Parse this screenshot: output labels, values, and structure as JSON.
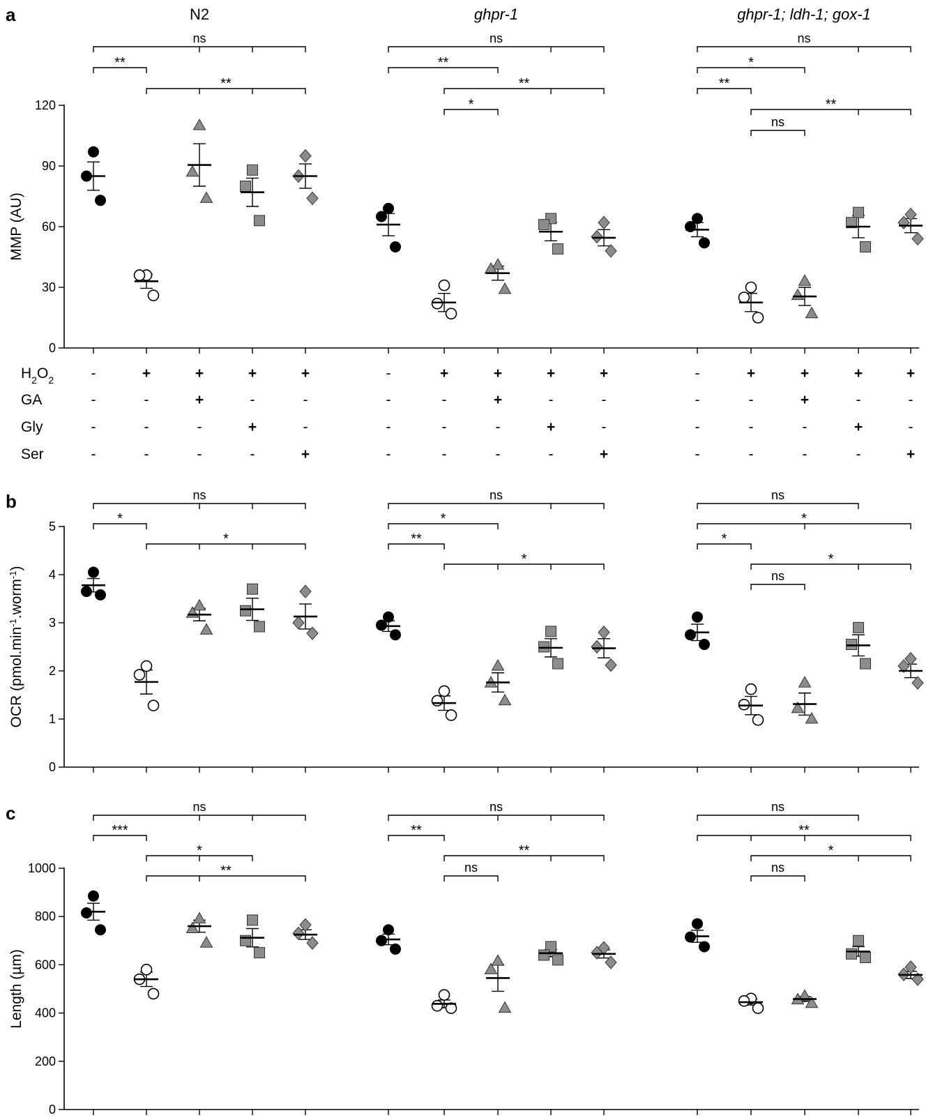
{
  "figure": {
    "group_titles": [
      {
        "text": "N2",
        "italic": false
      },
      {
        "text": "ghpr-1",
        "italic": true
      },
      {
        "text": "ghpr-1; ldh-1; gox-1",
        "italic": true
      }
    ],
    "treatment_rows": [
      {
        "label": "H2O2",
        "values": [
          "-",
          "+",
          "+",
          "+",
          "+"
        ]
      },
      {
        "label": "GA",
        "values": [
          "-",
          "-",
          "+",
          "-",
          "-"
        ]
      },
      {
        "label": "Gly",
        "values": [
          "-",
          "-",
          "-",
          "+",
          "-"
        ]
      },
      {
        "label": "Ser",
        "values": [
          "-",
          "-",
          "-",
          "-",
          "+"
        ]
      }
    ],
    "markers": [
      "filled-circle",
      "open-circle",
      "triangle",
      "square",
      "diamond"
    ],
    "colors": {
      "filled": "#000000",
      "open": "#ffffff",
      "gray": "#8c8c8c"
    }
  },
  "chart_data": [
    {
      "panel": "a",
      "type": "scatter",
      "ylabel": "MMP (AU)",
      "ylim": [
        0,
        120
      ],
      "yticks": [
        0,
        30,
        60,
        90,
        120
      ],
      "groups": [
        {
          "name": "N2",
          "conditions": [
            {
              "points": [
                97,
                85,
                73
              ],
              "mean": 85,
              "sem": 7
            },
            {
              "points": [
                36,
                36,
                26
              ],
              "mean": 33,
              "sem": 3.5
            },
            {
              "points": [
                110,
                87,
                74
              ],
              "mean": 90.5,
              "sem": 10.5
            },
            {
              "points": [
                88,
                80,
                63
              ],
              "mean": 77,
              "sem": 7
            },
            {
              "points": [
                95,
                85,
                74
              ],
              "mean": 85,
              "sem": 6
            }
          ]
        },
        {
          "name": "ghpr-1",
          "conditions": [
            {
              "points": [
                69,
                65,
                50
              ],
              "mean": 61,
              "sem": 5.5
            },
            {
              "points": [
                31,
                22,
                17
              ],
              "mean": 22.5,
              "sem": 4.5
            },
            {
              "points": [
                41,
                39,
                29
              ],
              "mean": 37,
              "sem": 3.5
            },
            {
              "points": [
                64,
                61,
                49
              ],
              "mean": 57.5,
              "sem": 4.5
            },
            {
              "points": [
                62,
                55,
                48
              ],
              "mean": 54.5,
              "sem": 4
            }
          ]
        },
        {
          "name": "ghpr-1; ldh-1; gox-1",
          "conditions": [
            {
              "points": [
                64,
                60,
                52
              ],
              "mean": 58.5,
              "sem": 3.5
            },
            {
              "points": [
                30,
                25,
                15
              ],
              "mean": 22.5,
              "sem": 4.5
            },
            {
              "points": [
                33,
                26,
                17
              ],
              "mean": 25.5,
              "sem": 4.5
            },
            {
              "points": [
                67,
                62,
                50
              ],
              "mean": 60,
              "sem": 5.5
            },
            {
              "points": [
                66,
                62,
                54
              ],
              "mean": 60.5,
              "sem": 3.5
            }
          ]
        }
      ],
      "significance": [
        {
          "group": 0,
          "from": 0,
          "to": 4,
          "label": "ns",
          "level": 0,
          "ticks": [
            2,
            3
          ]
        },
        {
          "group": 0,
          "from": 0,
          "to": 1,
          "label": "**",
          "level": 1,
          "ticks": []
        },
        {
          "group": 0,
          "from": 1,
          "to": 4,
          "label": "**",
          "level": 2,
          "ticks": [
            2,
            3
          ]
        },
        {
          "group": 1,
          "from": 0,
          "to": 4,
          "label": "ns",
          "level": 0,
          "ticks": [
            3
          ]
        },
        {
          "group": 1,
          "from": 0,
          "to": 2,
          "label": "**",
          "level": 1,
          "ticks": []
        },
        {
          "group": 1,
          "from": 1,
          "to": 4,
          "label": "**",
          "level": 2,
          "ticks": [
            3
          ]
        },
        {
          "group": 1,
          "from": 1,
          "to": 2,
          "label": "*",
          "level": 3,
          "ticks": []
        },
        {
          "group": 2,
          "from": 0,
          "to": 4,
          "label": "ns",
          "level": 0,
          "ticks": [
            3
          ]
        },
        {
          "group": 2,
          "from": 0,
          "to": 2,
          "label": "*",
          "level": 1,
          "ticks": []
        },
        {
          "group": 2,
          "from": 0,
          "to": 1,
          "label": "**",
          "level": 2,
          "ticks": []
        },
        {
          "group": 2,
          "from": 1,
          "to": 4,
          "label": "**",
          "level": 3,
          "ticks": [
            3
          ]
        },
        {
          "group": 2,
          "from": 1,
          "to": 2,
          "label": "ns",
          "level": 4,
          "ticks": []
        }
      ]
    },
    {
      "panel": "b",
      "type": "scatter",
      "ylabel": "OCR (pmol.min-1.worm-1)",
      "ylim": [
        0,
        5
      ],
      "yticks": [
        0,
        1,
        2,
        3,
        4,
        5
      ],
      "groups": [
        {
          "name": "N2",
          "conditions": [
            {
              "points": [
                4.05,
                3.65,
                3.58
              ],
              "mean": 3.78,
              "sem": 0.14
            },
            {
              "points": [
                2.1,
                1.92,
                1.28
              ],
              "mean": 1.77,
              "sem": 0.25
            },
            {
              "points": [
                3.35,
                3.2,
                2.85
              ],
              "mean": 3.17,
              "sem": 0.13
            },
            {
              "points": [
                3.7,
                3.25,
                2.92
              ],
              "mean": 3.28,
              "sem": 0.23
            },
            {
              "points": [
                3.65,
                3.0,
                2.78
              ],
              "mean": 3.13,
              "sem": 0.26
            }
          ]
        },
        {
          "name": "ghpr-1",
          "conditions": [
            {
              "points": [
                3.12,
                2.95,
                2.75
              ],
              "mean": 2.93,
              "sem": 0.11
            },
            {
              "points": [
                1.58,
                1.38,
                1.08
              ],
              "mean": 1.33,
              "sem": 0.15
            },
            {
              "points": [
                2.1,
                1.75,
                1.38
              ],
              "mean": 1.76,
              "sem": 0.2
            },
            {
              "points": [
                2.82,
                2.5,
                2.15
              ],
              "mean": 2.48,
              "sem": 0.19
            },
            {
              "points": [
                2.8,
                2.5,
                2.12
              ],
              "mean": 2.47,
              "sem": 0.2
            }
          ]
        },
        {
          "name": "ghpr-1; ldh-1; gox-1",
          "conditions": [
            {
              "points": [
                3.12,
                2.75,
                2.55
              ],
              "mean": 2.8,
              "sem": 0.17
            },
            {
              "points": [
                1.62,
                1.3,
                0.98
              ],
              "mean": 1.28,
              "sem": 0.19
            },
            {
              "points": [
                1.75,
                1.22,
                1.0
              ],
              "mean": 1.31,
              "sem": 0.23
            },
            {
              "points": [
                2.9,
                2.55,
                2.15
              ],
              "mean": 2.53,
              "sem": 0.22
            },
            {
              "points": [
                2.25,
                2.1,
                1.75
              ],
              "mean": 2.0,
              "sem": 0.14
            }
          ]
        }
      ],
      "significance": [
        {
          "group": 0,
          "from": 0,
          "to": 4,
          "label": "ns",
          "level": 0,
          "ticks": [
            2,
            3
          ]
        },
        {
          "group": 0,
          "from": 0,
          "to": 1,
          "label": "*",
          "level": 1,
          "ticks": []
        },
        {
          "group": 0,
          "from": 1,
          "to": 4,
          "label": "*",
          "level": 2,
          "ticks": [
            2,
            3
          ]
        },
        {
          "group": 1,
          "from": 0,
          "to": 4,
          "label": "ns",
          "level": 0,
          "ticks": [
            3
          ]
        },
        {
          "group": 1,
          "from": 0,
          "to": 2,
          "label": "*",
          "level": 1,
          "ticks": []
        },
        {
          "group": 1,
          "from": 0,
          "to": 1,
          "label": "**",
          "level": 2,
          "ticks": []
        },
        {
          "group": 1,
          "from": 1,
          "to": 4,
          "label": "*",
          "level": 3,
          "ticks": [
            2,
            3
          ]
        },
        {
          "group": 2,
          "from": 0,
          "to": 3,
          "label": "ns",
          "level": 0,
          "ticks": []
        },
        {
          "group": 2,
          "from": 0,
          "to": 4,
          "label": "*",
          "level": 1,
          "ticks": [
            2
          ]
        },
        {
          "group": 2,
          "from": 0,
          "to": 1,
          "label": "*",
          "level": 2,
          "ticks": []
        },
        {
          "group": 2,
          "from": 1,
          "to": 4,
          "label": "*",
          "level": 3,
          "ticks": [
            3
          ]
        },
        {
          "group": 2,
          "from": 1,
          "to": 2,
          "label": "ns",
          "level": 4,
          "ticks": []
        }
      ]
    },
    {
      "panel": "c",
      "type": "scatter",
      "ylabel": "Length (µm)",
      "ylim": [
        0,
        1000
      ],
      "yticks": [
        0,
        200,
        400,
        600,
        800,
        1000
      ],
      "groups": [
        {
          "name": "N2",
          "conditions": [
            {
              "points": [
                885,
                815,
                745
              ],
              "mean": 820,
              "sem": 35
            },
            {
              "points": [
                580,
                540,
                480
              ],
              "mean": 540,
              "sem": 30
            },
            {
              "points": [
                790,
                750,
                690
              ],
              "mean": 760,
              "sem": 25
            },
            {
              "points": [
                785,
                700,
                650
              ],
              "mean": 712,
              "sem": 38
            },
            {
              "points": [
                765,
                730,
                690
              ],
              "mean": 725,
              "sem": 20
            }
          ]
        },
        {
          "name": "ghpr-1",
          "conditions": [
            {
              "points": [
                745,
                700,
                665
              ],
              "mean": 705,
              "sem": 22
            },
            {
              "points": [
                475,
                430,
                420
              ],
              "mean": 438,
              "sem": 16
            },
            {
              "points": [
                615,
                580,
                420
              ],
              "mean": 545,
              "sem": 55
            },
            {
              "points": [
                675,
                640,
                620
              ],
              "mean": 648,
              "sem": 15
            },
            {
              "points": [
                670,
                650,
                610
              ],
              "mean": 645,
              "sem": 17
            }
          ]
        },
        {
          "name": "ghpr-1; ldh-1; gox-1",
          "conditions": [
            {
              "points": [
                770,
                715,
                675
              ],
              "mean": 718,
              "sem": 25
            },
            {
              "points": [
                460,
                450,
                420
              ],
              "mean": 445,
              "sem": 12
            },
            {
              "points": [
                470,
                455,
                440
              ],
              "mean": 458,
              "sem": 10
            },
            {
              "points": [
                700,
                645,
                630
              ],
              "mean": 655,
              "sem": 20
            },
            {
              "points": [
                590,
                560,
                540
              ],
              "mean": 558,
              "sem": 15
            }
          ]
        }
      ],
      "significance": [
        {
          "group": 0,
          "from": 0,
          "to": 4,
          "label": "ns",
          "level": 0,
          "ticks": [
            2,
            3
          ]
        },
        {
          "group": 0,
          "from": 0,
          "to": 1,
          "label": "***",
          "level": 1,
          "ticks": []
        },
        {
          "group": 0,
          "from": 1,
          "to": 3,
          "label": "*",
          "level": 2,
          "ticks": [
            2
          ]
        },
        {
          "group": 0,
          "from": 1,
          "to": 4,
          "label": "**",
          "level": 3,
          "ticks": [
            2
          ]
        },
        {
          "group": 1,
          "from": 0,
          "to": 4,
          "label": "ns",
          "level": 0,
          "ticks": [
            2,
            3
          ]
        },
        {
          "group": 1,
          "from": 0,
          "to": 1,
          "label": "**",
          "level": 1,
          "ticks": []
        },
        {
          "group": 1,
          "from": 1,
          "to": 4,
          "label": "**",
          "level": 2,
          "ticks": [
            3
          ]
        },
        {
          "group": 1,
          "from": 1,
          "to": 2,
          "label": "ns",
          "level": 3,
          "ticks": []
        },
        {
          "group": 2,
          "from": 0,
          "to": 3,
          "label": "ns",
          "level": 0,
          "ticks": []
        },
        {
          "group": 2,
          "from": 0,
          "to": 4,
          "label": "**",
          "level": 1,
          "ticks": [
            1,
            2
          ]
        },
        {
          "group": 2,
          "from": 1,
          "to": 4,
          "label": "*",
          "level": 2,
          "ticks": [
            3
          ]
        },
        {
          "group": 2,
          "from": 1,
          "to": 2,
          "label": "ns",
          "level": 3,
          "ticks": []
        }
      ]
    }
  ]
}
